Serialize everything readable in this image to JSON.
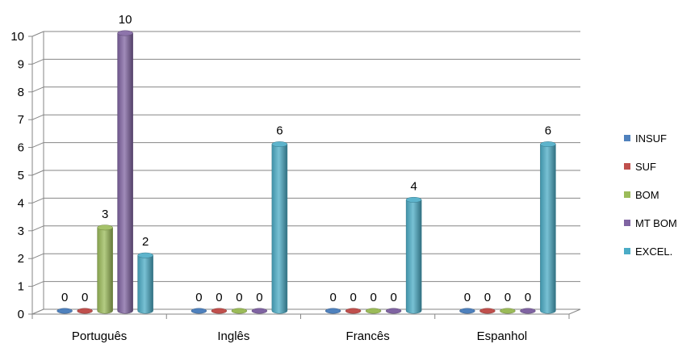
{
  "chart_data": {
    "type": "bar",
    "categories": [
      "Português",
      "Inglês",
      "Francês",
      "Espanhol"
    ],
    "series": [
      {
        "name": "INSUF",
        "values": [
          0,
          0,
          0,
          0
        ],
        "color": "#4F81BD"
      },
      {
        "name": "SUF",
        "values": [
          0,
          0,
          0,
          0
        ],
        "color": "#C0504D"
      },
      {
        "name": "BOM",
        "values": [
          3,
          0,
          0,
          0
        ],
        "color": "#9BBB59"
      },
      {
        "name": "MT BOM",
        "values": [
          10,
          0,
          0,
          0
        ],
        "color": "#8064A2"
      },
      {
        "name": "EXCEL.",
        "values": [
          2,
          6,
          4,
          6
        ],
        "color": "#4BACC6"
      }
    ],
    "data_labels": [
      [
        "0",
        "0",
        "3",
        "10",
        "2"
      ],
      [
        "0",
        "0",
        "0",
        "0",
        "6"
      ],
      [
        "0",
        "0",
        "0",
        "0",
        "4"
      ],
      [
        "0",
        "0",
        "0",
        "0",
        "6"
      ]
    ],
    "yticks": [
      0,
      1,
      2,
      3,
      4,
      5,
      6,
      7,
      8,
      9,
      10
    ],
    "ylim": [
      0,
      10
    ],
    "grid": true,
    "legend": "right",
    "style": "3d-cylinder"
  }
}
